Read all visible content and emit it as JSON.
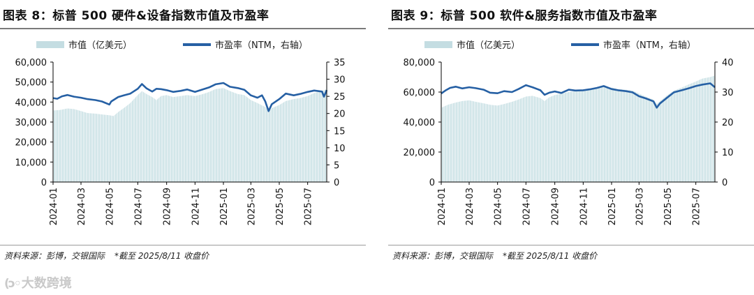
{
  "watermark": {
    "text": "大数跨境"
  },
  "charts": [
    {
      "title": "图表 8：标普 500 硬件&设备指数市值及市盈率",
      "source": "资料来源：彭博，交银国际",
      "note": "*截至 2025/8/11 收盘价"
    },
    {
      "title": "图表 9：标普 500 软件&服务指数市值及市盈率",
      "source": "资料来源：彭博，交银国际",
      "note": "*截至 2025/8/11 收盘价"
    }
  ],
  "colors": {
    "bar": "#c4dde2",
    "line": "#2660a4",
    "axis": "#000000"
  },
  "chart_data": [
    {
      "type": "bar+line",
      "x_tick_labels": [
        "2024-01",
        "2024-03",
        "2024-05",
        "2024-07",
        "2024-09",
        "2024-11",
        "2025-01",
        "2025-03",
        "2025-05",
        "2025-07"
      ],
      "x_range": [
        "2024-01-01",
        "2025-08-11"
      ],
      "y_left": {
        "min": 0,
        "max": 60000,
        "ticks": [
          "0",
          "10,000",
          "20,000",
          "30,000",
          "40,000",
          "50,000",
          "60,000"
        ]
      },
      "y_right": {
        "min": 0,
        "max": 35,
        "ticks": [
          "0",
          "5",
          "10",
          "15",
          "20",
          "25",
          "30",
          "35"
        ]
      },
      "legend": {
        "position": "top",
        "bar_label": "市值（亿美元）",
        "line_label": "市盈率（NTM，右轴）"
      },
      "bar_series": {
        "name": "市值（亿美元）",
        "points": [
          [
            "2024-01-01",
            35800
          ],
          [
            "2024-01-15",
            36000
          ],
          [
            "2024-02-01",
            36800
          ],
          [
            "2024-02-15",
            36500
          ],
          [
            "2024-03-01",
            35500
          ],
          [
            "2024-03-15",
            34500
          ],
          [
            "2024-04-01",
            34200
          ],
          [
            "2024-04-15",
            33800
          ],
          [
            "2024-05-01",
            33400
          ],
          [
            "2024-05-10",
            33000
          ],
          [
            "2024-05-20",
            35000
          ],
          [
            "2024-06-01",
            37000
          ],
          [
            "2024-06-15",
            39500
          ],
          [
            "2024-07-01",
            43500
          ],
          [
            "2024-07-10",
            45500
          ],
          [
            "2024-07-20",
            44000
          ],
          [
            "2024-08-01",
            42500
          ],
          [
            "2024-08-10",
            41000
          ],
          [
            "2024-08-20",
            43000
          ],
          [
            "2024-09-01",
            43500
          ],
          [
            "2024-09-15",
            42500
          ],
          [
            "2024-10-01",
            43000
          ],
          [
            "2024-10-15",
            43500
          ],
          [
            "2024-11-01",
            43000
          ],
          [
            "2024-11-15",
            43800
          ],
          [
            "2024-12-01",
            45000
          ],
          [
            "2024-12-15",
            46500
          ],
          [
            "2025-01-01",
            47000
          ],
          [
            "2025-01-15",
            45500
          ],
          [
            "2025-02-01",
            44000
          ],
          [
            "2025-02-15",
            43500
          ],
          [
            "2025-03-01",
            41000
          ],
          [
            "2025-03-15",
            39500
          ],
          [
            "2025-04-01",
            37500
          ],
          [
            "2025-04-08",
            35500
          ],
          [
            "2025-04-15",
            37000
          ],
          [
            "2025-05-01",
            38500
          ],
          [
            "2025-05-15",
            40500
          ],
          [
            "2025-06-01",
            41500
          ],
          [
            "2025-06-15",
            42000
          ],
          [
            "2025-07-01",
            43000
          ],
          [
            "2025-07-15",
            44500
          ],
          [
            "2025-08-01",
            45500
          ],
          [
            "2025-08-11",
            46500
          ]
        ]
      },
      "line_series": {
        "name": "市盈率（NTM，右轴）",
        "points": [
          [
            "2024-01-01",
            24.5
          ],
          [
            "2024-01-10",
            24.3
          ],
          [
            "2024-01-20",
            25.0
          ],
          [
            "2024-02-01",
            25.4
          ],
          [
            "2024-02-15",
            24.9
          ],
          [
            "2024-03-01",
            24.6
          ],
          [
            "2024-03-15",
            24.2
          ],
          [
            "2024-04-01",
            23.9
          ],
          [
            "2024-04-15",
            23.5
          ],
          [
            "2024-05-01",
            22.6
          ],
          [
            "2024-05-05",
            23.5
          ],
          [
            "2024-05-20",
            24.8
          ],
          [
            "2024-06-01",
            25.3
          ],
          [
            "2024-06-15",
            25.8
          ],
          [
            "2024-07-01",
            27.2
          ],
          [
            "2024-07-10",
            28.6
          ],
          [
            "2024-07-20",
            27.3
          ],
          [
            "2024-08-01",
            26.4
          ],
          [
            "2024-08-10",
            27.2
          ],
          [
            "2024-08-20",
            27.1
          ],
          [
            "2024-09-01",
            26.8
          ],
          [
            "2024-09-15",
            26.3
          ],
          [
            "2024-10-01",
            26.6
          ],
          [
            "2024-10-15",
            27.0
          ],
          [
            "2024-11-01",
            26.3
          ],
          [
            "2024-11-15",
            26.9
          ],
          [
            "2024-12-01",
            27.6
          ],
          [
            "2024-12-15",
            28.5
          ],
          [
            "2025-01-01",
            28.9
          ],
          [
            "2025-01-15",
            27.8
          ],
          [
            "2025-02-01",
            27.4
          ],
          [
            "2025-02-15",
            26.9
          ],
          [
            "2025-03-01",
            25.3
          ],
          [
            "2025-03-15",
            24.6
          ],
          [
            "2025-03-25",
            25.3
          ],
          [
            "2025-04-01",
            23.5
          ],
          [
            "2025-04-08",
            20.7
          ],
          [
            "2025-04-15",
            22.7
          ],
          [
            "2025-05-01",
            24.2
          ],
          [
            "2025-05-15",
            25.8
          ],
          [
            "2025-06-01",
            25.3
          ],
          [
            "2025-06-15",
            25.7
          ],
          [
            "2025-07-01",
            26.3
          ],
          [
            "2025-07-15",
            26.7
          ],
          [
            "2025-08-01",
            26.4
          ],
          [
            "2025-08-05",
            24.9
          ],
          [
            "2025-08-11",
            26.8
          ]
        ]
      }
    },
    {
      "type": "bar+line",
      "x_tick_labels": [
        "2024-01",
        "2024-03",
        "2024-05",
        "2024-07",
        "2024-09",
        "2024-11",
        "2025-01",
        "2025-03",
        "2025-05",
        "2025-07"
      ],
      "x_range": [
        "2024-01-01",
        "2025-08-11"
      ],
      "y_left": {
        "min": 0,
        "max": 80000,
        "ticks": [
          "0",
          "20,000",
          "40,000",
          "60,000",
          "80,000"
        ]
      },
      "y_right": {
        "min": 0,
        "max": 40,
        "ticks": [
          "0",
          "10",
          "20",
          "30",
          "40"
        ]
      },
      "legend": {
        "position": "top",
        "bar_label": "市值（亿美元）",
        "line_label": "市盈率（NTM，右轴）"
      },
      "bar_series": {
        "name": "市值（亿美元）",
        "points": [
          [
            "2024-01-01",
            49500
          ],
          [
            "2024-01-15",
            51500
          ],
          [
            "2024-02-01",
            53000
          ],
          [
            "2024-02-15",
            54000
          ],
          [
            "2024-03-01",
            54500
          ],
          [
            "2024-03-15",
            53500
          ],
          [
            "2024-04-01",
            52500
          ],
          [
            "2024-04-15",
            51500
          ],
          [
            "2024-05-01",
            51000
          ],
          [
            "2024-05-15",
            52000
          ],
          [
            "2024-06-01",
            53500
          ],
          [
            "2024-06-15",
            55000
          ],
          [
            "2024-07-01",
            57000
          ],
          [
            "2024-07-15",
            57500
          ],
          [
            "2024-08-01",
            56000
          ],
          [
            "2024-08-10",
            54000
          ],
          [
            "2024-08-20",
            56500
          ],
          [
            "2024-09-01",
            58000
          ],
          [
            "2024-09-15",
            59000
          ],
          [
            "2024-10-01",
            60000
          ],
          [
            "2024-10-15",
            60500
          ],
          [
            "2024-11-01",
            61000
          ],
          [
            "2024-11-15",
            62000
          ],
          [
            "2024-12-01",
            62500
          ],
          [
            "2024-12-15",
            63500
          ],
          [
            "2025-01-01",
            63000
          ],
          [
            "2025-01-15",
            62000
          ],
          [
            "2025-02-01",
            61500
          ],
          [
            "2025-02-15",
            61000
          ],
          [
            "2025-03-01",
            59000
          ],
          [
            "2025-03-15",
            57000
          ],
          [
            "2025-04-01",
            55000
          ],
          [
            "2025-04-08",
            52000
          ],
          [
            "2025-04-15",
            54000
          ],
          [
            "2025-05-01",
            58000
          ],
          [
            "2025-05-15",
            61000
          ],
          [
            "2025-06-01",
            63000
          ],
          [
            "2025-06-15",
            65000
          ],
          [
            "2025-07-01",
            67000
          ],
          [
            "2025-07-15",
            69000
          ],
          [
            "2025-08-01",
            70000
          ],
          [
            "2025-08-11",
            71000
          ]
        ]
      },
      "line_series": {
        "name": "市盈率（NTM，右轴）",
        "points": [
          [
            "2024-01-01",
            29.5
          ],
          [
            "2024-01-10",
            30.5
          ],
          [
            "2024-01-20",
            31.4
          ],
          [
            "2024-02-01",
            31.8
          ],
          [
            "2024-02-15",
            31.2
          ],
          [
            "2024-03-01",
            31.6
          ],
          [
            "2024-03-15",
            31.3
          ],
          [
            "2024-04-01",
            30.8
          ],
          [
            "2024-04-15",
            29.8
          ],
          [
            "2024-05-01",
            29.6
          ],
          [
            "2024-05-15",
            30.3
          ],
          [
            "2024-06-01",
            30.0
          ],
          [
            "2024-06-15",
            31.0
          ],
          [
            "2024-07-01",
            32.3
          ],
          [
            "2024-07-15",
            31.6
          ],
          [
            "2024-08-01",
            30.6
          ],
          [
            "2024-08-10",
            29.1
          ],
          [
            "2024-08-20",
            29.8
          ],
          [
            "2024-09-01",
            30.2
          ],
          [
            "2024-09-15",
            29.7
          ],
          [
            "2024-10-01",
            30.8
          ],
          [
            "2024-10-15",
            30.5
          ],
          [
            "2024-11-01",
            30.6
          ],
          [
            "2024-11-15",
            30.9
          ],
          [
            "2024-12-01",
            31.4
          ],
          [
            "2024-12-15",
            32.0
          ],
          [
            "2025-01-01",
            31.0
          ],
          [
            "2025-01-15",
            30.6
          ],
          [
            "2025-02-01",
            30.3
          ],
          [
            "2025-02-15",
            29.9
          ],
          [
            "2025-03-01",
            28.6
          ],
          [
            "2025-03-15",
            27.9
          ],
          [
            "2025-04-01",
            26.9
          ],
          [
            "2025-04-08",
            24.8
          ],
          [
            "2025-04-15",
            26.2
          ],
          [
            "2025-05-01",
            28.2
          ],
          [
            "2025-05-15",
            29.9
          ],
          [
            "2025-06-01",
            30.6
          ],
          [
            "2025-06-15",
            31.2
          ],
          [
            "2025-07-01",
            32.0
          ],
          [
            "2025-07-15",
            32.5
          ],
          [
            "2025-08-01",
            32.9
          ],
          [
            "2025-08-11",
            31.6
          ]
        ]
      }
    }
  ]
}
